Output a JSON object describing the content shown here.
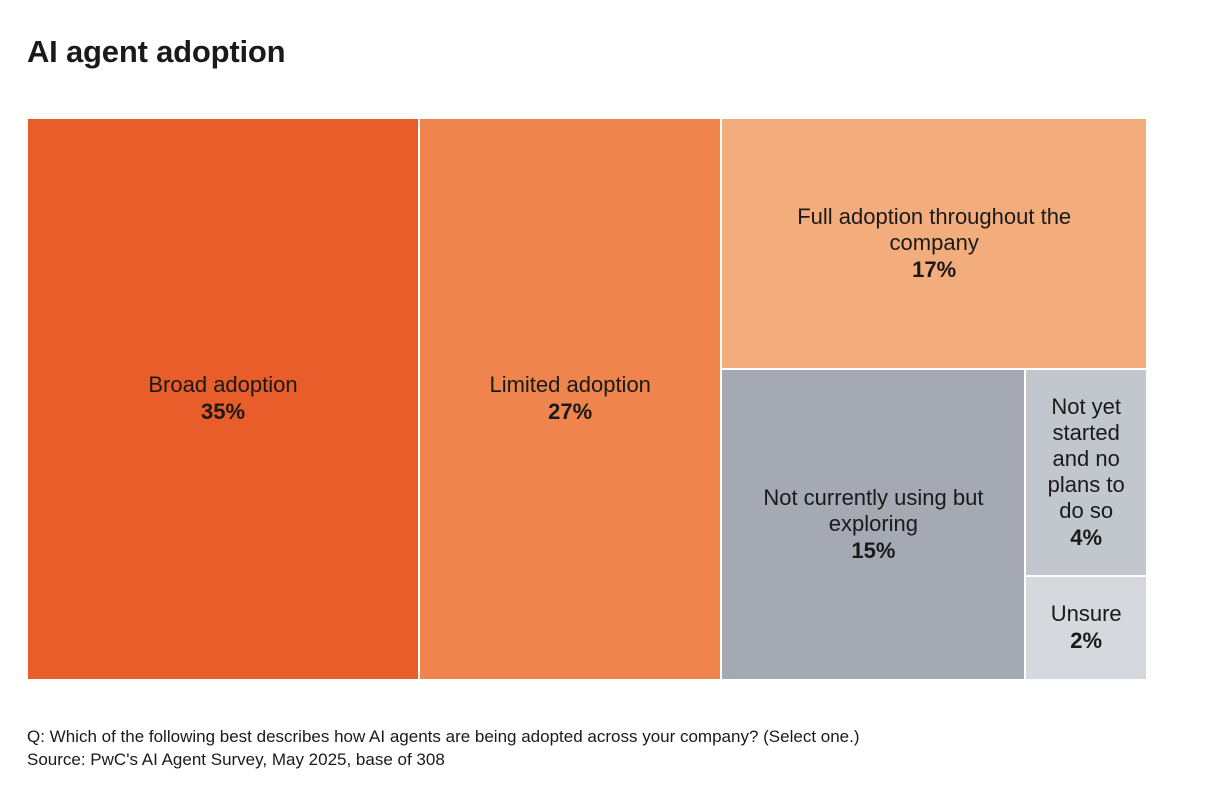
{
  "title": "AI agent adoption",
  "chart_data": {
    "type": "treemap",
    "title": "AI agent adoption",
    "unit": "%",
    "items": [
      {
        "label": "Broad adoption",
        "value": 35,
        "display": "35%",
        "color": "#e85d2a"
      },
      {
        "label": "Limited adoption",
        "value": 27,
        "display": "27%",
        "color": "#ef854d"
      },
      {
        "label": "Full adoption throughout the company",
        "value": 17,
        "display": "17%",
        "color": "#f3ad7c"
      },
      {
        "label": "Not currently using but exploring",
        "value": 15,
        "display": "15%",
        "color": "#a5a9b3"
      },
      {
        "label": "Not yet started and no plans to do so",
        "value": 4,
        "display": "4%",
        "color": "#c2c6cd"
      },
      {
        "label": "Unsure",
        "value": 2,
        "display": "2%",
        "color": "#d5d8dc"
      }
    ]
  },
  "footnote": {
    "question": "Q: Which of the following best describes how AI agents are being adopted across your company? (Select one.)",
    "source": "Source: PwC's AI Agent Survey, May 2025, base of 308"
  }
}
